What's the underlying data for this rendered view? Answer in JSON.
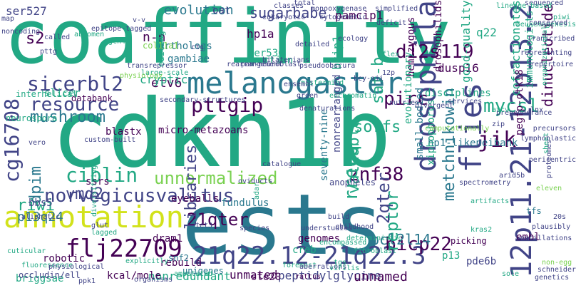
{
  "palette": {
    "background": "#ffffff",
    "dark_purple": "#440154",
    "indigo": "#414487",
    "blue": "#2a788e",
    "teal": "#22a884",
    "green": "#7ad151",
    "yellow": "#d2e21b"
  },
  "words": [
    "coaffinity",
    "cdkn1b",
    "ests",
    "drosophila",
    "12p11.21-12p13.2",
    "melanogaster",
    "annotation",
    "21q22.12-21q22.3",
    "flj22709",
    "flies",
    "cg16708",
    "norvegicusvalitus",
    "unnormalized",
    "pttgip",
    "resource",
    "sicerbl2",
    "ciblin",
    "evolution",
    "sugarbabe",
    "pamcip1",
    "d12s119",
    "pirc",
    "znf38",
    "bicp22",
    "metchnikowin",
    "dinucleotide",
    "mycsl",
    "jik",
    "reptor",
    "rrecq",
    "2qter",
    "21qter",
    "sorfs",
    "libraries",
    "valuable",
    "mushroom",
    "ser527",
    "s2",
    "n-n",
    "q22",
    "saf-b",
    "bzip1",
    "etv6",
    "vmd2",
    "dpim",
    "riwi",
    "p13q24",
    "fundulus",
    "unmated",
    "genomes",
    "dram1",
    "ssrs",
    "bbs5",
    "eyeballs",
    "micro-metazoans",
    "blastx",
    "databank",
    "slicer",
    "cryptic",
    "orthologs",
    "hp1a",
    "gambiae",
    "editing",
    "ser530",
    "dusp16",
    "hemizygous",
    "drosophilids",
    "good-quality",
    "cofractionates",
    "immunologists",
    "pegfp-otk18",
    "hp1-likeneibank",
    "xiphophorus",
    "small-bodied",
    "evolutionary",
    "seventy-nine",
    "anopheles",
    "nonrearranged",
    "disciplines",
    "tfs",
    "embl",
    "pde6b",
    "bcl2l14",
    "peptidylglycine",
    "nonredundant",
    "kcal/mole",
    "briggsae",
    "robotic",
    "occludin/ell",
    "ste20",
    "unnamed",
    "p13",
    "picking",
    "creb",
    "unigenes",
    "rebuild",
    "snf2",
    "portion",
    "oat",
    "gcn4",
    "col11a1",
    "pttg",
    "abdomen",
    "called",
    "interhelical",
    "neurospora",
    "aliphatic",
    "fluorescence",
    "tet3",
    "custom-built",
    "vero",
    "amputated",
    "secondary-structures",
    "rearrangement",
    "pseudoobscura",
    "large-scale",
    "transrepressor",
    "bilaterians",
    "mastermind",
    "ensembl",
    "nutrient",
    "services",
    "leukemogenesis",
    "sequenced",
    "conserved",
    "representing",
    "repertoire",
    "transcribed",
    "organizational",
    "lymphoblastic",
    "proteomes",
    "cuticular",
    "genetics",
    "catalogue",
    "understudied",
    "childhood",
    "encompassed",
    "foremost",
    "species",
    "oviducts",
    "adar",
    "diversifying",
    "lagged",
    "organisms",
    "explicitly",
    "physiological",
    "ppk1",
    "aberrations",
    "tgs",
    "rattus",
    "virilis",
    "deterministic",
    "fibroblast",
    "spectrometry",
    "artifacts",
    "kras2",
    "arid5b",
    "plausibly",
    "non-egg",
    "map",
    "total",
    "classes",
    "eukaryotic",
    "cytogenetic",
    "lineage-based",
    "monooxygenase",
    "epitope-tagged",
    "ctg",
    "pan-neuroblast",
    "ecology",
    "deficit",
    "simplified",
    "euchromatin",
    "green",
    "computationally",
    "divergent",
    "preponderance",
    "physiology",
    "noncoding",
    "detailed",
    "build",
    "denaturations",
    "12p",
    "20s",
    "sheet",
    "lnx",
    "bcy-aii",
    "glut",
    "eleven",
    "oscillations",
    "schneider",
    "piwi",
    "precursors",
    "sole",
    "atcv",
    "v-v",
    "flex",
    "zip",
    "pericentric"
  ]
}
